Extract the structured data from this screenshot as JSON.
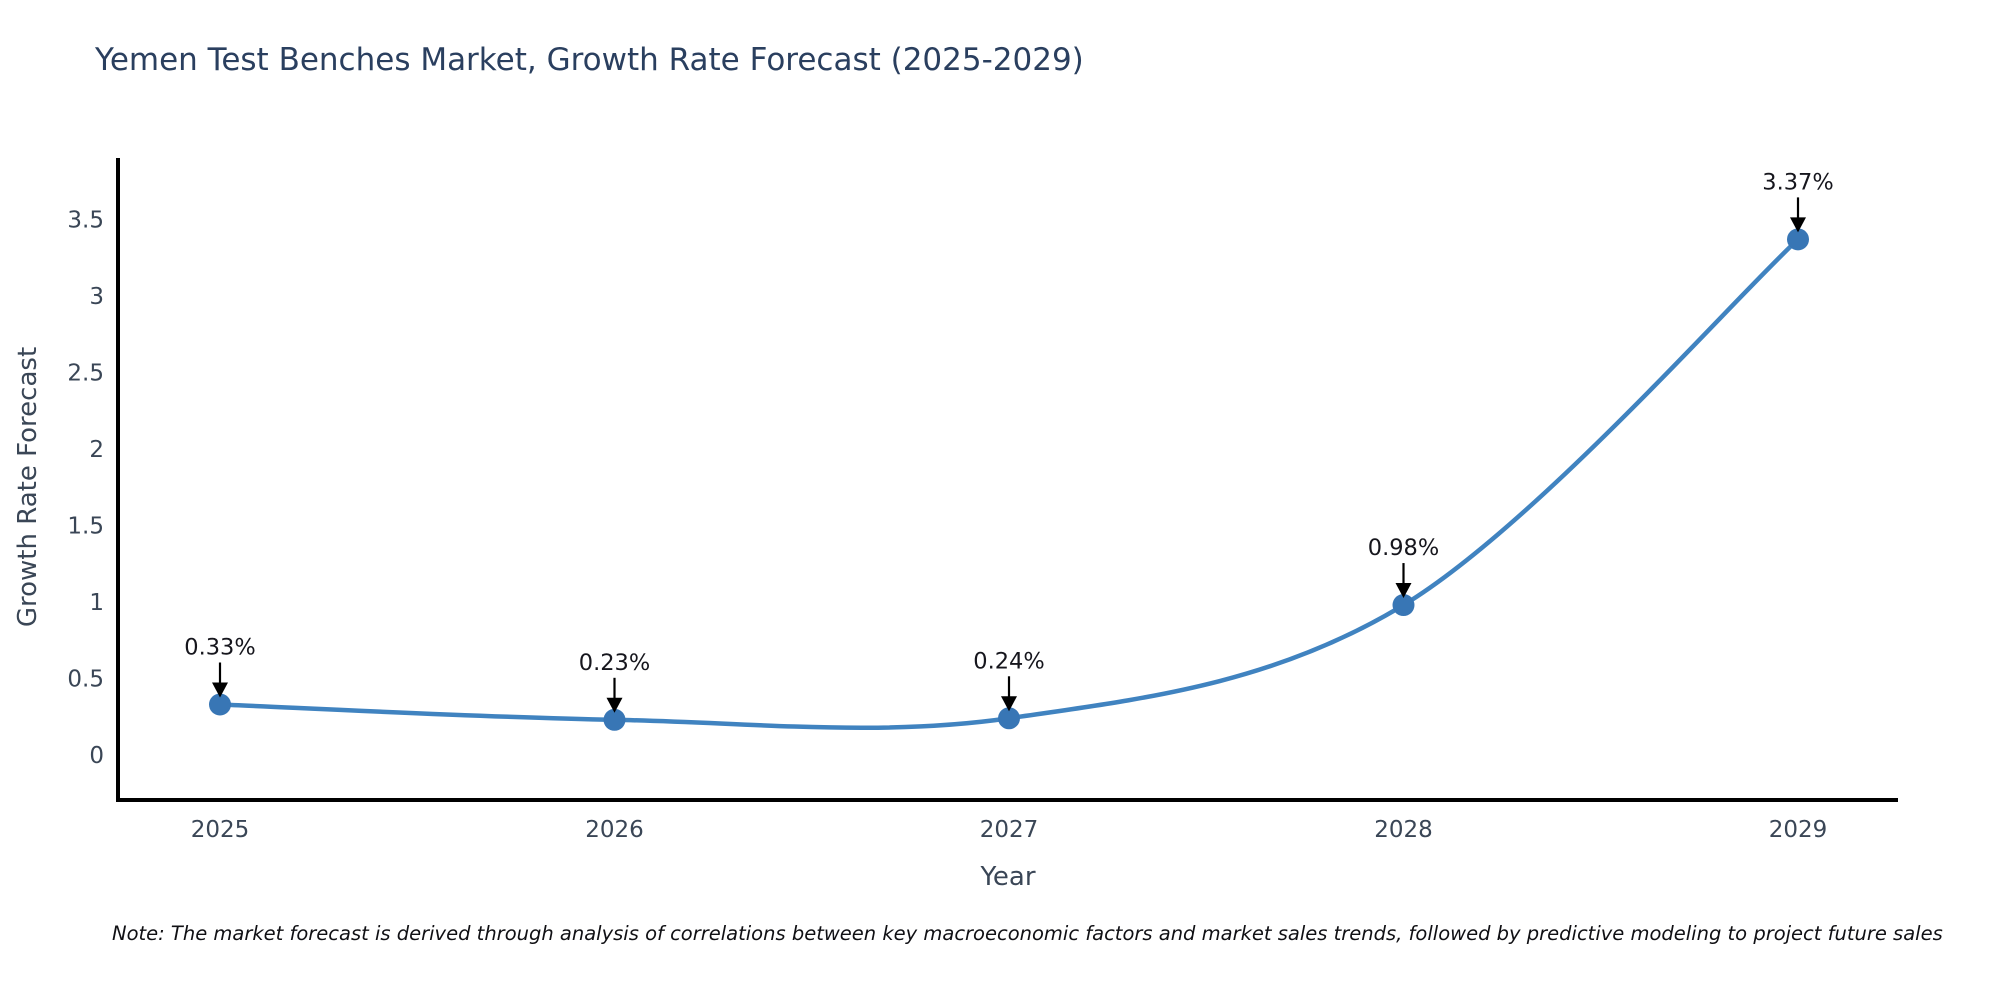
{
  "note": "Note: The market forecast is derived through analysis of correlations between key macroeconomic factors and market sales trends, followed by predictive modeling to project future sales",
  "chart_data": {
    "type": "line",
    "title": "Yemen Test Benches Market, Growth Rate Forecast (2025-2029)",
    "xlabel": "Year",
    "ylabel": "Growth Rate Forecast",
    "categories": [
      "2025",
      "2026",
      "2027",
      "2028",
      "2029"
    ],
    "values": [
      0.33,
      0.23,
      0.24,
      0.98,
      3.37
    ],
    "point_labels": [
      "0.33%",
      "0.23%",
      "0.24%",
      "0.98%",
      "3.37%"
    ],
    "series_name": "Growth Rate Forecast",
    "ylim": [
      0,
      3.5
    ],
    "yticks": [
      0,
      0.5,
      1,
      1.5,
      2,
      2.5,
      3,
      3.5
    ],
    "ytick_labels": [
      "0",
      "0.5",
      "1",
      "1.5",
      "2",
      "2.5",
      "3",
      "3.5"
    ],
    "grid": false,
    "legend_position": "none",
    "line_shape": "spline",
    "marker": "circle",
    "colors": {
      "line": "#4083c0",
      "marker": "#3876b5",
      "axis": "#000000",
      "title": "#2a3f5f",
      "tick": "#3a4656",
      "annotation": "#16161d",
      "arrow": "#000000",
      "note": "#101014",
      "background": "#ffffff"
    }
  }
}
